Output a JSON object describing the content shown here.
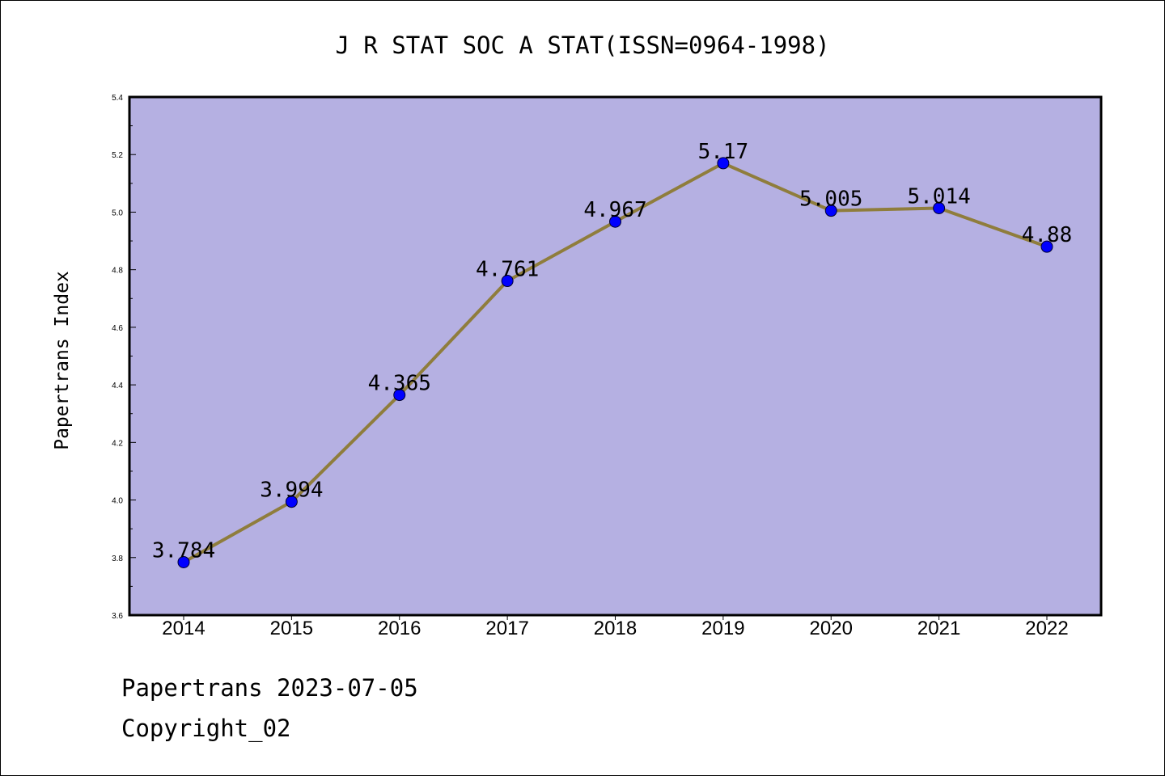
{
  "chart_data": {
    "type": "line",
    "title": "J R STAT SOC A STAT(ISSN=0964-1998)",
    "xlabel": "",
    "ylabel": "Papertrans Index",
    "categories": [
      "2014",
      "2015",
      "2016",
      "2017",
      "2018",
      "2019",
      "2020",
      "2021",
      "2022"
    ],
    "series": [
      {
        "values": [
          3.784,
          3.994,
          4.365,
          4.761,
          4.967,
          5.17,
          5.005,
          5.014,
          4.88
        ],
        "labels": [
          "3.784",
          "3.994",
          "4.365",
          "4.761",
          "4.967",
          "5.17",
          "5.005",
          "5.014",
          "4.88"
        ]
      }
    ],
    "ylim": [
      3.6,
      5.4
    ],
    "yticks": [
      "3.6",
      "3.8",
      "4.0",
      "4.2",
      "4.4",
      "4.6",
      "4.8",
      "5.0",
      "5.2",
      "5.4"
    ],
    "grid": false,
    "legend": "none",
    "colors": {
      "plot_background": "#b5b0e2",
      "line": "#8f7d3c",
      "marker": "#0000ff"
    }
  },
  "footer": {
    "line1": "Papertrans 2023-07-05",
    "line2": "Copyright_02"
  }
}
